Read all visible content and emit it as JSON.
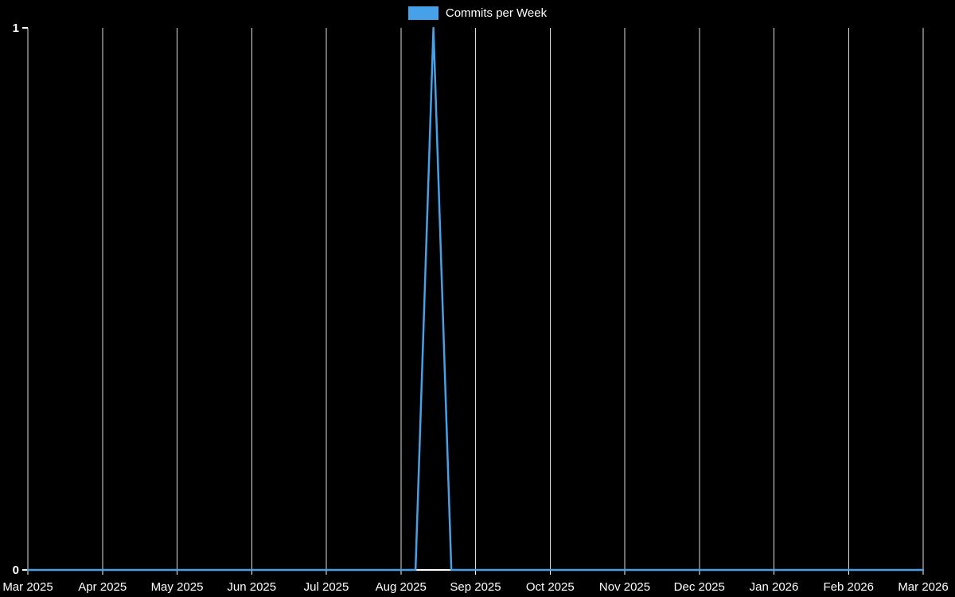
{
  "chart_data": {
    "type": "line",
    "title": "",
    "legend": [
      {
        "label": "Commits per Week",
        "color": "#47a1e8"
      }
    ],
    "x_axis": {
      "tick_labels": [
        "Mar 2025",
        "Apr 2025",
        "May 2025",
        "Jun 2025",
        "Jul 2025",
        "Aug 2025",
        "Sep 2025",
        "Oct 2025",
        "Nov 2025",
        "Dec 2025",
        "Jan 2026",
        "Feb 2026",
        "Mar 2026"
      ]
    },
    "y_axis": {
      "tick_labels": [
        "0",
        "1"
      ],
      "min": 0,
      "max": 1
    },
    "grid": {
      "vertical": true,
      "horizontal": false
    },
    "series": [
      {
        "name": "Commits per Week",
        "color": "#47a1e8",
        "points": [
          {
            "x_frac": 0.0,
            "y": 0
          },
          {
            "x_frac": 0.433,
            "y": 0
          },
          {
            "x_frac": 0.453,
            "y": 1
          },
          {
            "x_frac": 0.473,
            "y": 0
          },
          {
            "x_frac": 1.0,
            "y": 0
          }
        ]
      }
    ],
    "style": {
      "background": "#000000",
      "grid_color": "#dcdcdc",
      "axis_color": "#ffffff",
      "text_color": "#ffffff"
    }
  }
}
